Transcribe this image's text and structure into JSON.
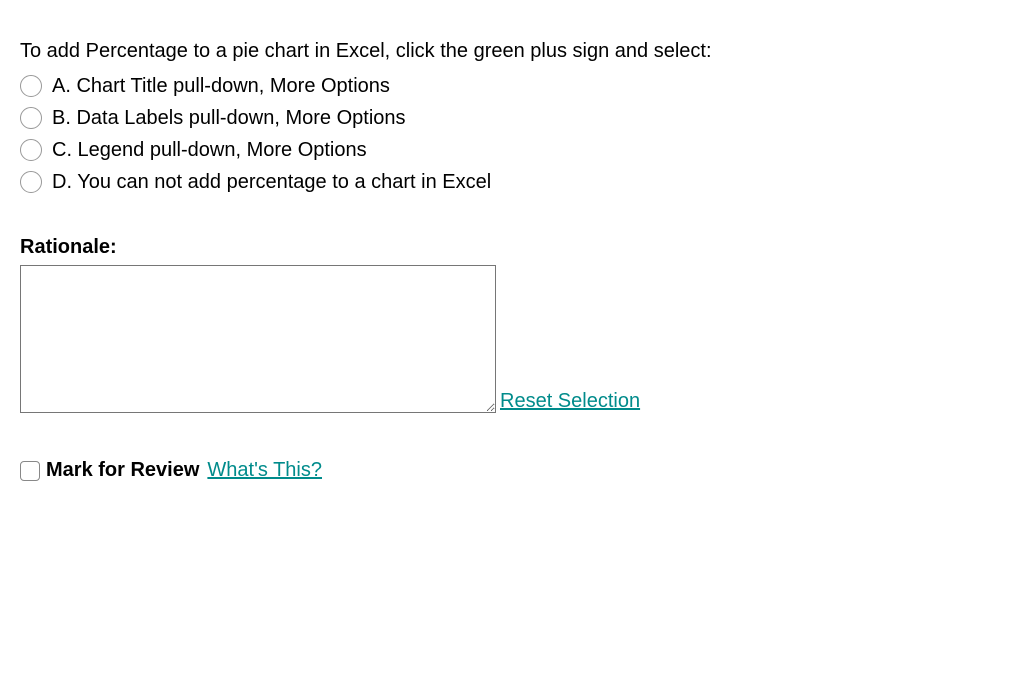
{
  "question": {
    "text": "To add Percentage to a pie chart in Excel, click the green plus sign and select:",
    "options": [
      {
        "label": "A. Chart Title pull-down, More Options"
      },
      {
        "label": "B. Data Labels pull-down, More Options"
      },
      {
        "label": "C. Legend pull-down, More Options"
      },
      {
        "label": "D. You can not add percentage to a chart in Excel"
      }
    ]
  },
  "rationale": {
    "label": "Rationale:",
    "value": "",
    "reset_link": "Reset Selection"
  },
  "review": {
    "label": "Mark for Review",
    "whats_this": "What's This?"
  },
  "colors": {
    "link": "#008b8b",
    "text": "#000000",
    "radio_border": "#999999",
    "textarea_border": "#767676",
    "background": "#ffffff"
  }
}
